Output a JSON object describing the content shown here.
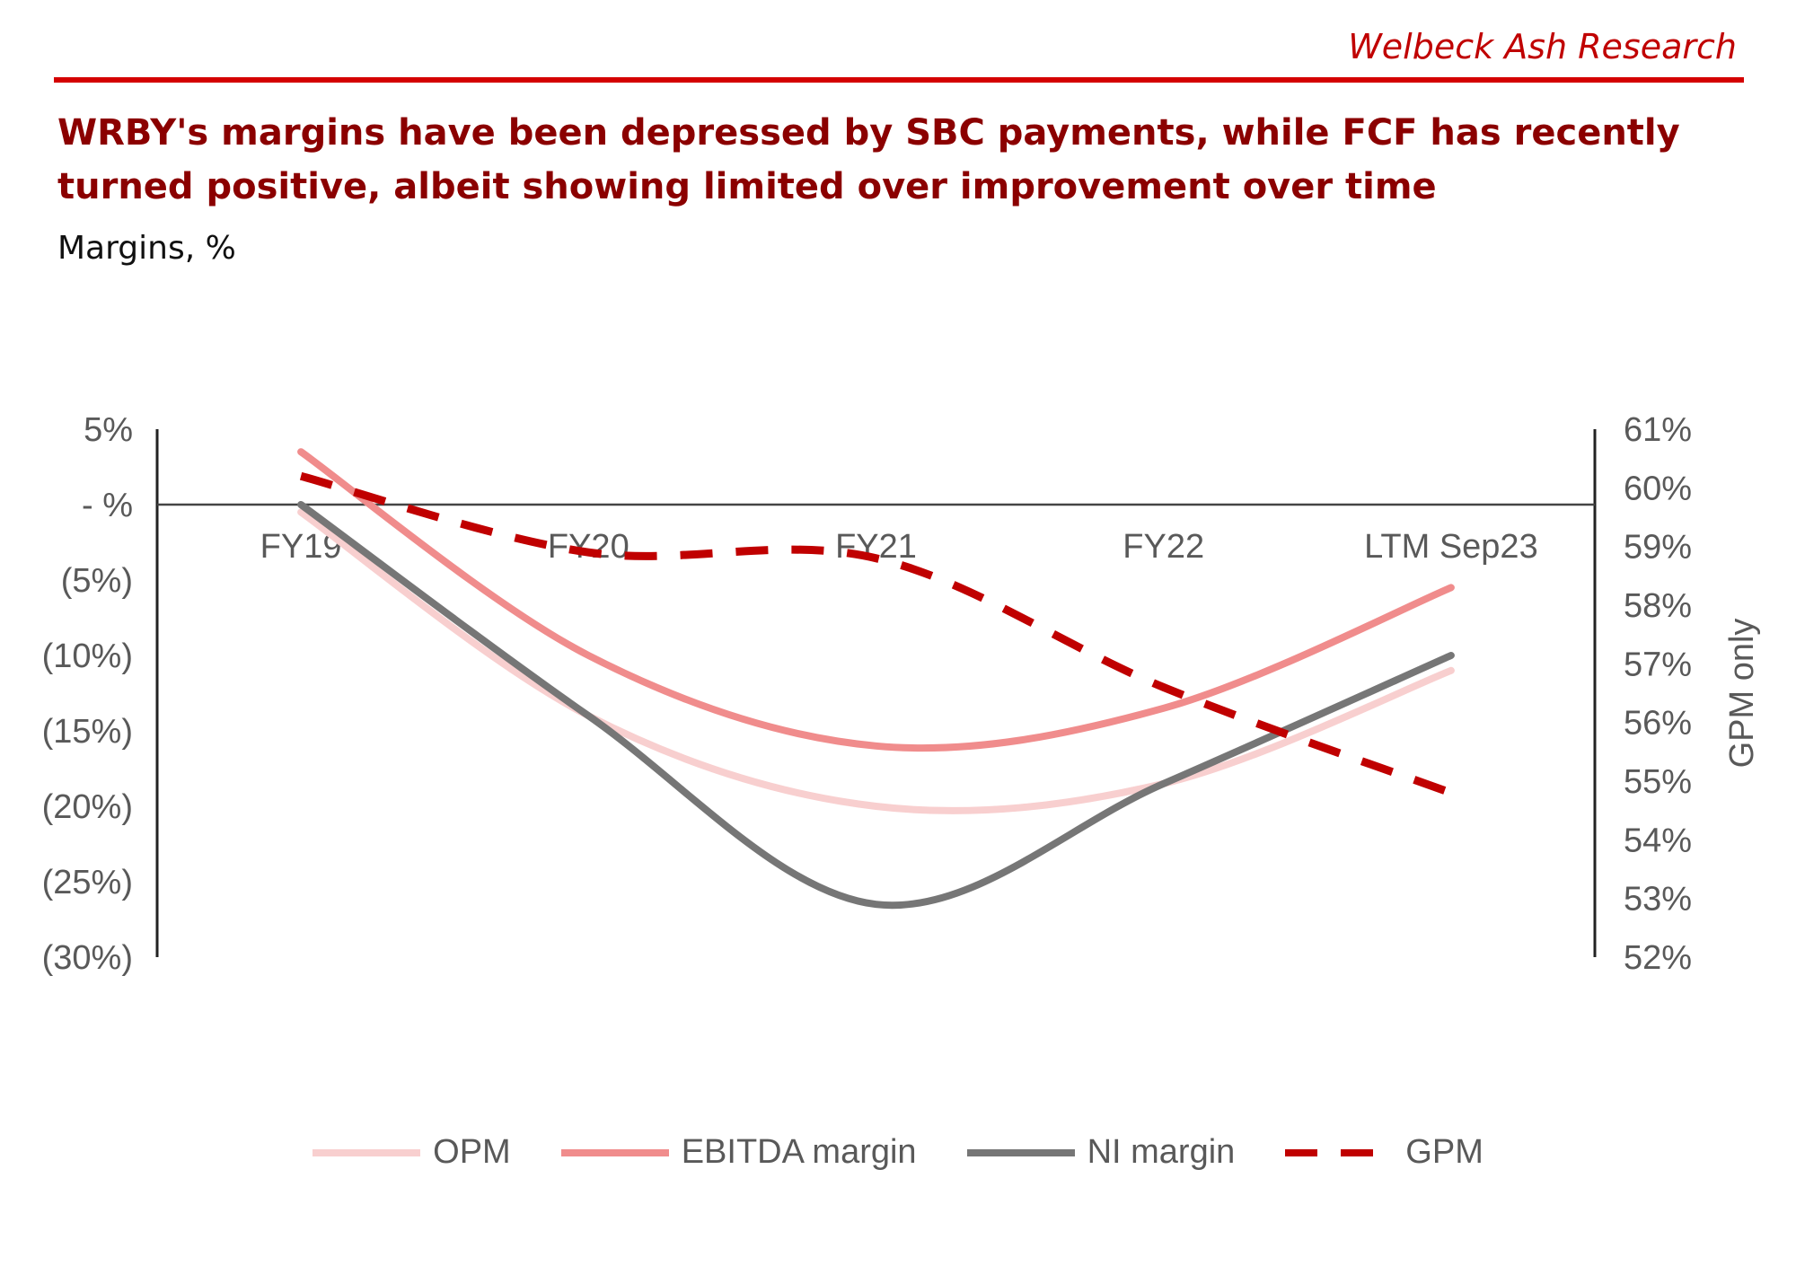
{
  "header": {
    "brand": "Welbeck Ash Research",
    "headline": "WRBY's margins have been depressed by SBC payments, while FCF has recently turned positive, albeit showing limited over improvement over time",
    "subtitle": "Margins, %"
  },
  "chart_data": {
    "type": "line",
    "categories": [
      "FY19",
      "FY20",
      "FY21",
      "FY22",
      "LTM Sep23"
    ],
    "left_axis": {
      "ticks": [
        "5%",
        "- %",
        "(5%)",
        "(10%)",
        "(15%)",
        "(20%)",
        "(25%)",
        "(30%)"
      ],
      "ylim": [
        -30,
        5
      ]
    },
    "right_axis": {
      "label": "GPM only",
      "ticks": [
        "61%",
        "60%",
        "59%",
        "58%",
        "57%",
        "56%",
        "55%",
        "54%",
        "53%",
        "52%"
      ],
      "ylim": [
        52,
        61
      ]
    },
    "series": [
      {
        "name": "OPM",
        "axis": "left",
        "color": "#f8cfcf",
        "dash": false,
        "values": [
          -0.5,
          -14.0,
          -20.0,
          -18.5,
          -11.0
        ]
      },
      {
        "name": "EBITDA margin",
        "axis": "left",
        "color": "#f08c8c",
        "dash": false,
        "values": [
          3.5,
          -10.0,
          -16.0,
          -13.5,
          -5.5
        ]
      },
      {
        "name": "NI margin",
        "axis": "left",
        "color": "#767676",
        "dash": false,
        "values": [
          0.0,
          -14.0,
          -26.5,
          -18.5,
          -10.0
        ]
      },
      {
        "name": "GPM",
        "axis": "right",
        "color": "#c00000",
        "dash": true,
        "values": [
          60.2,
          58.9,
          58.8,
          56.6,
          54.8
        ]
      }
    ]
  }
}
